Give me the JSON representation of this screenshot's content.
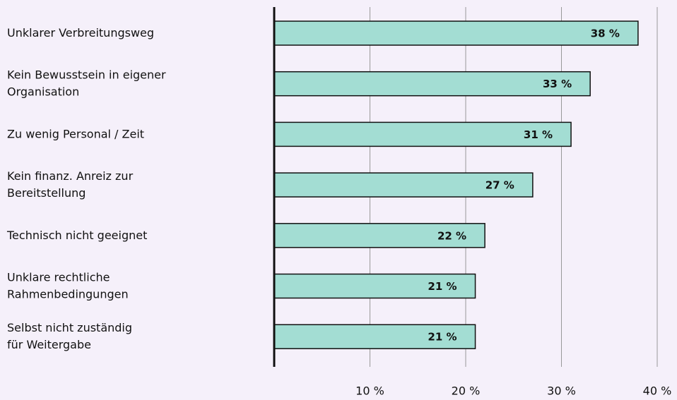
{
  "chart_data": {
    "type": "barh",
    "categories": [
      "Unklarer Verbreitungsweg",
      "Kein Bewusstsein in eigener\nOrganisation",
      "Zu wenig Personal / Zeit",
      "Kein finanz. Anreiz zur\nBereitstellung",
      "Technisch nicht geeignet",
      "Unklare rechtliche\nRahmenbedingungen",
      "Selbst nicht zuständig\nfür Weitergabe"
    ],
    "values": [
      38,
      33,
      31,
      27,
      22,
      21,
      21
    ],
    "value_labels": [
      "38 %",
      "33 %",
      "31 %",
      "27 %",
      "22 %",
      "21 %",
      "21 %"
    ],
    "color": "#a3ddd3",
    "xlim": [
      0,
      40
    ],
    "xticks": [
      {
        "value": 10,
        "label": "10 %"
      },
      {
        "value": 20,
        "label": "20 %"
      },
      {
        "value": 30,
        "label": "30 %"
      },
      {
        "value": 40,
        "label": "40 %"
      }
    ],
    "grid": true
  }
}
